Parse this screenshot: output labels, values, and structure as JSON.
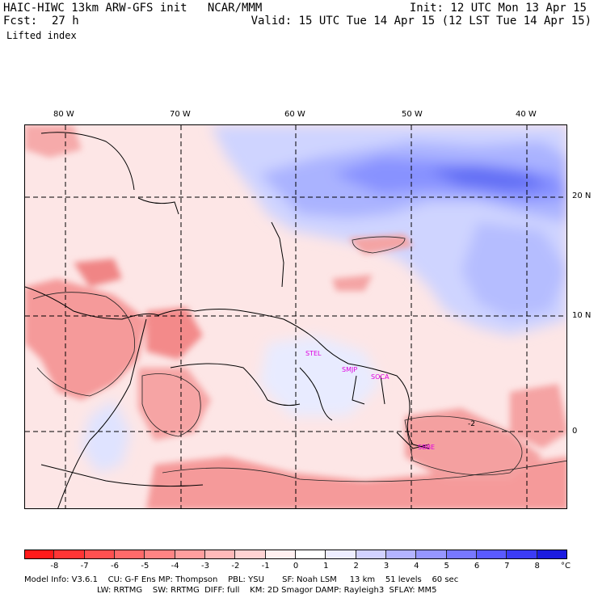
{
  "header": {
    "model_line": "HAIC-HIWC 13km ARW-GFS init   NCAR/MMM",
    "init_line": "Init: 12 UTC Mon 13 Apr 15",
    "fcst_label": "Fcst:",
    "fcst_value": "27 h",
    "valid_line": "Valid: 15 UTC Tue 14 Apr 15 (12 LST Tue 14 Apr 15)",
    "field_name": "Lifted index"
  },
  "map": {
    "longitude_labels": [
      "80 W",
      "70 W",
      "60 W",
      "50 W",
      "40 W"
    ],
    "latitude_labels": [
      "20 N",
      "10 N",
      "0"
    ],
    "stations": [
      "STEL",
      "SMJP",
      "SOCA",
      "SBBE"
    ],
    "contour_label": "-2"
  },
  "colorbar": {
    "ticks": [
      "-8",
      "-7",
      "-6",
      "-5",
      "-4",
      "-3",
      "-2",
      "-1",
      "0",
      "1",
      "2",
      "3",
      "4",
      "5",
      "6",
      "7",
      "8"
    ],
    "unit": "°C",
    "colors": [
      "#ff1a1a",
      "#ff3535",
      "#ff5050",
      "#ff6a6a",
      "#ff8484",
      "#ff9e9e",
      "#ffb9b9",
      "#ffd3d3",
      "#fff0f0",
      "#ffffff",
      "#eeeeff",
      "#d2d2ff",
      "#b4b4ff",
      "#9696ff",
      "#7878ff",
      "#5a5aff",
      "#3c3cf5",
      "#1c1ce0"
    ]
  },
  "footer": {
    "line1": "Model Info: V3.6.1    CU: G-F Ens MP: Thompson    PBL: YSU       SF: Noah LSM     13 km    51 levels    60 sec",
    "line2": "LW: RRTMG    SW: RRTMG  DIFF: full    KM: 2D Smagor DAMP: Rayleigh3  SFLAY: MM5"
  }
}
